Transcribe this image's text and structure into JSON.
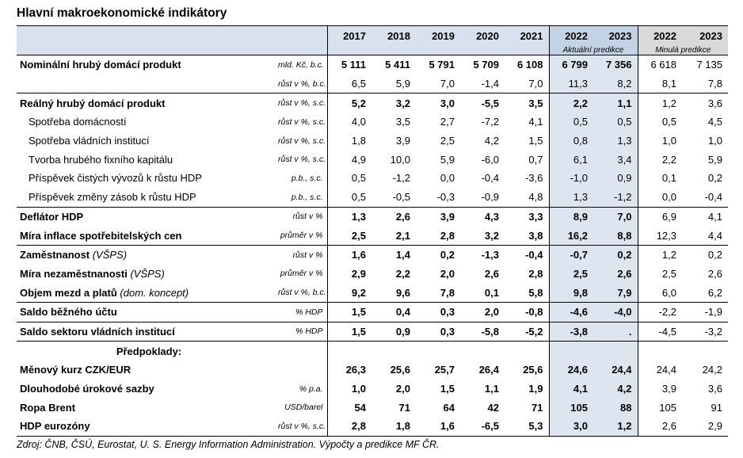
{
  "title": "Hlavní makroekonomické indikátory",
  "header": {
    "years_hist": [
      "2017",
      "2018",
      "2019",
      "2020",
      "2021"
    ],
    "years_cur": [
      "2022",
      "2023"
    ],
    "years_prev": [
      "2022",
      "2023"
    ],
    "cur_label": "Aktuální predikce",
    "prev_label": "Minulá predikce"
  },
  "rows": [
    {
      "label": "Nominální hrubý domácí produkt",
      "unit": "mld. Kč, b.c.",
      "vals": [
        "5 111",
        "5 411",
        "5 791",
        "5 709",
        "6 108",
        "6 799",
        "7 356",
        "6 618",
        "7 135"
      ]
    },
    {
      "label": "",
      "unit": "růst v %, b.c.",
      "vals": [
        "6,5",
        "5,9",
        "7,0",
        "-1,4",
        "7,0",
        "11,3",
        "8,2",
        "8,1",
        "7,8"
      ]
    },
    {
      "label": "Reálný hrubý domácí produkt",
      "unit": "růst v %, s.c.",
      "vals": [
        "5,2",
        "3,2",
        "3,0",
        "-5,5",
        "3,5",
        "2,2",
        "1,1",
        "1,2",
        "3,6"
      ]
    },
    {
      "label": "Spotřeba domácností",
      "unit": "růst v %, s.c.",
      "vals": [
        "4,0",
        "3,5",
        "2,7",
        "-7,2",
        "4,1",
        "0,5",
        "0,5",
        "0,5",
        "4,5"
      ]
    },
    {
      "label": "Spotřeba vládních institucí",
      "unit": "růst v %, s.c.",
      "vals": [
        "1,8",
        "3,9",
        "2,5",
        "4,2",
        "1,5",
        "0,8",
        "1,3",
        "1,0",
        "1,0"
      ]
    },
    {
      "label": "Tvorba hrubého fixního kapitálu",
      "unit": "růst v %, s.c.",
      "vals": [
        "4,9",
        "10,0",
        "5,9",
        "-6,0",
        "0,7",
        "6,1",
        "3,4",
        "2,2",
        "5,9"
      ]
    },
    {
      "label": "Příspěvek čistých vývozů k růstu HDP",
      "unit": "p.b., s.c.",
      "vals": [
        "0,5",
        "-1,2",
        "0,0",
        "-0,4",
        "-3,6",
        "-1,0",
        "0,9",
        "0,1",
        "0,2"
      ]
    },
    {
      "label": "Příspěvek změny zásob k růstu HDP",
      "unit": "p.b., s.c.",
      "vals": [
        "0,5",
        "-0,5",
        "-0,3",
        "-0,9",
        "4,8",
        "1,3",
        "-1,2",
        "0,0",
        "-0,4"
      ]
    },
    {
      "label": "Deflátor HDP",
      "unit": "růst v %",
      "vals": [
        "1,3",
        "2,6",
        "3,9",
        "4,3",
        "3,3",
        "8,9",
        "7,0",
        "6,9",
        "4,1"
      ]
    },
    {
      "label": "Míra inflace spotřebitelských cen",
      "unit": "průměr v %",
      "vals": [
        "2,5",
        "2,1",
        "2,8",
        "3,2",
        "3,8",
        "16,2",
        "8,8",
        "12,3",
        "4,4"
      ]
    },
    {
      "label": "Zaměstnanost ",
      "label_it": "(VŠPS)",
      "unit": "růst v %",
      "vals": [
        "1,6",
        "1,4",
        "0,2",
        "-1,3",
        "-0,4",
        "-0,7",
        "0,2",
        "1,2",
        "0,2"
      ]
    },
    {
      "label": "Míra nezaměstnanosti ",
      "label_it": "(VŠPS)",
      "unit": "průměr v %",
      "vals": [
        "2,9",
        "2,2",
        "2,0",
        "2,6",
        "2,8",
        "2,5",
        "2,6",
        "2,5",
        "2,6"
      ]
    },
    {
      "label": "Objem mezd a platů ",
      "label_it": "(dom. koncept)",
      "unit": "růst v %, b.c.",
      "vals": [
        "9,2",
        "9,6",
        "7,8",
        "0,1",
        "5,8",
        "9,8",
        "7,9",
        "6,0",
        "6,2"
      ]
    },
    {
      "label": "Saldo běžného účtu",
      "unit": "% HDP",
      "vals": [
        "1,5",
        "0,4",
        "0,3",
        "2,0",
        "-0,8",
        "-4,6",
        "-4,0",
        "-2,2",
        "-1,9"
      ]
    },
    {
      "label": "Saldo sektoru vládních institucí",
      "unit": "% HDP",
      "vals": [
        "1,5",
        "0,9",
        "0,3",
        "-5,8",
        "-5,2",
        "-3,8",
        ".",
        "-4,5",
        "-3,2"
      ]
    },
    {
      "label": "Předpoklady:",
      "unit": "",
      "vals": [
        "",
        "",
        "",
        "",
        "",
        "",
        "",
        "",
        ""
      ]
    },
    {
      "label": "Měnový kurz CZK/EUR",
      "unit": "",
      "vals": [
        "26,3",
        "25,6",
        "25,7",
        "26,4",
        "25,6",
        "24,6",
        "24,4",
        "24,4",
        "24,2"
      ]
    },
    {
      "label": "Dlouhodobé úrokové sazby",
      "unit": "% p.a.",
      "vals": [
        "1,0",
        "2,0",
        "1,5",
        "1,1",
        "1,9",
        "4,1",
        "4,2",
        "3,9",
        "3,6"
      ]
    },
    {
      "label": "Ropa Brent",
      "unit": "USD/barel",
      "vals": [
        "54",
        "71",
        "64",
        "42",
        "71",
        "105",
        "88",
        "105",
        "91"
      ]
    },
    {
      "label": "HDP eurozóny",
      "unit": "růst v %, s.c.",
      "vals": [
        "2,8",
        "1,8",
        "1,6",
        "-6,5",
        "5,3",
        "3,0",
        "1,2",
        "2,6",
        "2,9"
      ]
    }
  ],
  "source": "Zdroj: ČNB, ČSÚ, Eurostat, U. S. Energy Information Administration. Výpočty a predikce MF ČR."
}
